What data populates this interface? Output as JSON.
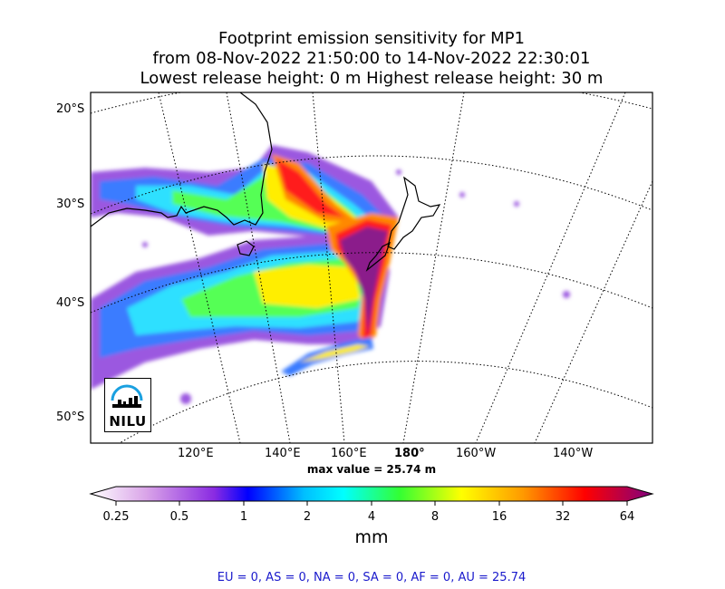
{
  "title": {
    "line1": "Footprint emission sensitivity for MP1",
    "line2": "from 08-Nov-2022 21:50:00 to 14-Nov-2022 22:30:01",
    "line3": "Lowest release height: 0 m      Highest release height: 30 m"
  },
  "map": {
    "lat_labels": [
      "20°S",
      "30°S",
      "40°S",
      "50°S"
    ],
    "lon_labels": [
      "120°E",
      "140°E",
      "160°E",
      "180°",
      "160°W",
      "140°W"
    ],
    "max_value": "max value = 25.74 m",
    "logo": "NILU"
  },
  "colorbar": {
    "ticks": [
      "0.25",
      "0.5",
      "1",
      "2",
      "4",
      "8",
      "16",
      "32",
      "64"
    ],
    "unit": "mm",
    "colors": [
      "#ffffff",
      "#d9a3e8",
      "#8a2be2",
      "#0000ff",
      "#00bfff",
      "#00ffff",
      "#33ff33",
      "#ffff00",
      "#ff9900",
      "#ff0000",
      "#800080"
    ]
  },
  "footer": "EU = 0,  AS = 0,  NA = 0,  SA = 0,  AF = 0,  AU = 25.74"
}
